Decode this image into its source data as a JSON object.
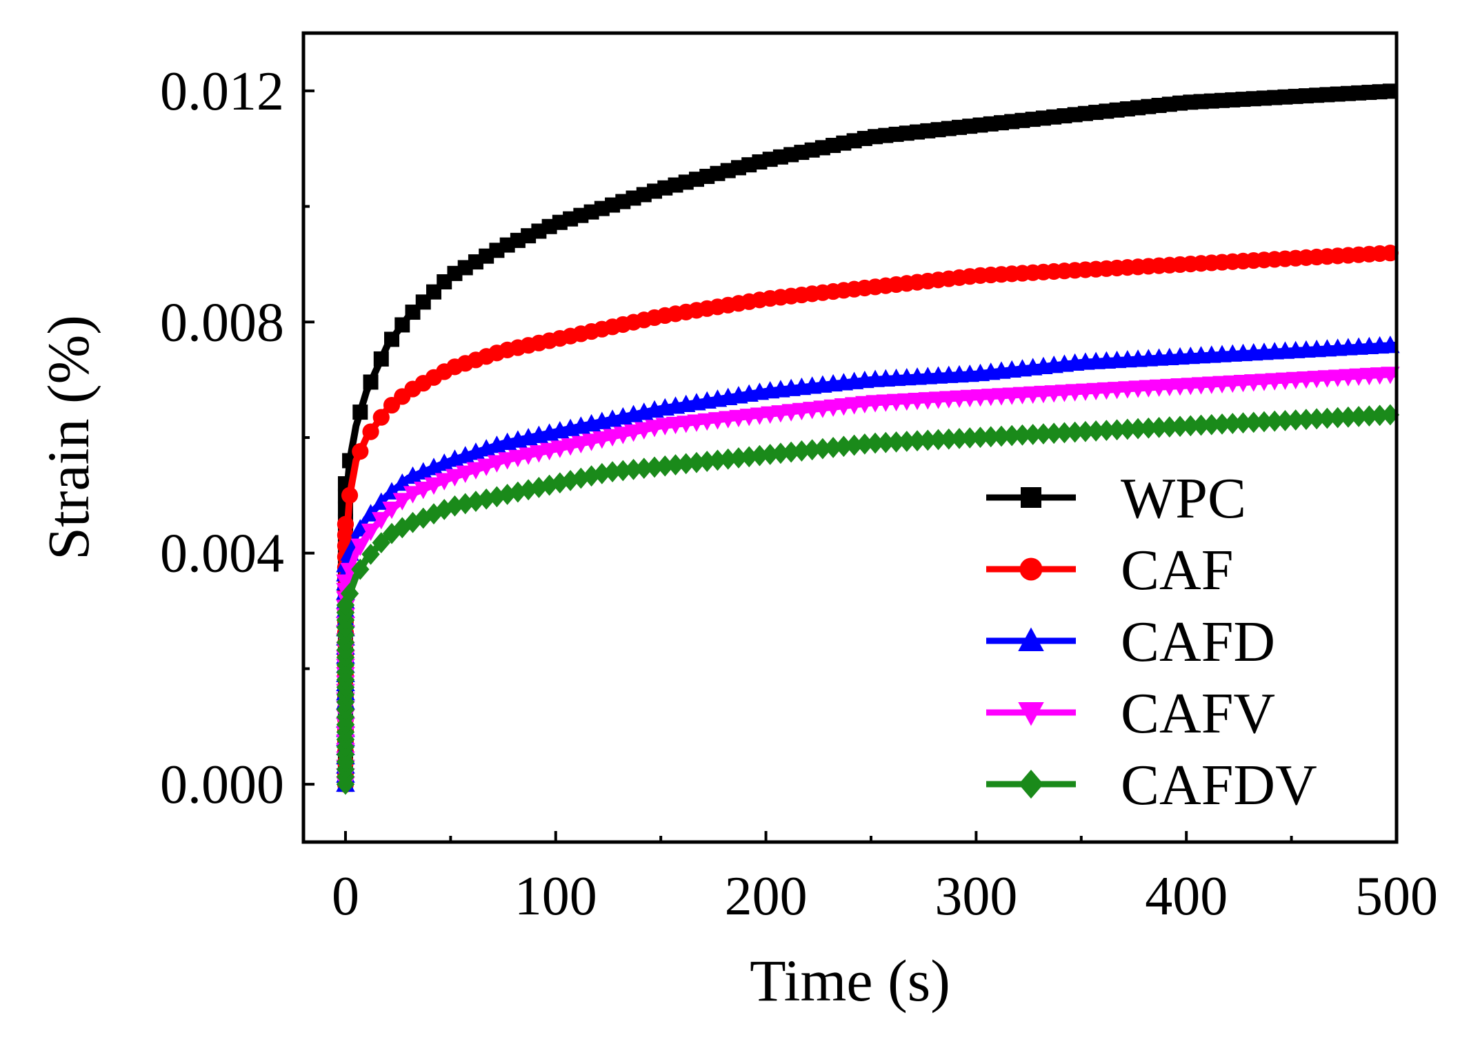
{
  "chart_data": {
    "type": "scatter",
    "title": "",
    "xlabel": "Time (s)",
    "ylabel": "Strain (%)",
    "xlim": [
      -20,
      500
    ],
    "ylim": [
      -0.001,
      0.013
    ],
    "x_ticks": [
      0,
      100,
      200,
      300,
      400,
      500
    ],
    "x_tick_labels": [
      "0",
      "100",
      "200",
      "300",
      "400",
      "500"
    ],
    "y_ticks": [
      0.0,
      0.004,
      0.008,
      0.012
    ],
    "y_tick_labels": [
      "0.000",
      "0.004",
      "0.008",
      "0.012"
    ],
    "grid": false,
    "legend_position": "bottom-right",
    "x": [
      0,
      1,
      2,
      5,
      10,
      20,
      30,
      50,
      75,
      100,
      125,
      150,
      200,
      250,
      300,
      350,
      400,
      450,
      500
    ],
    "series": [
      {
        "name": "WPC",
        "color": "#000000",
        "marker": "square",
        "values": [
          0.0,
          0.0052,
          0.0056,
          0.0062,
          0.0068,
          0.0076,
          0.0081,
          0.0088,
          0.0093,
          0.0097,
          0.01,
          0.0103,
          0.0108,
          0.0112,
          0.0114,
          0.0116,
          0.0118,
          0.0119,
          0.012
        ]
      },
      {
        "name": "CAF",
        "color": "#ff0000",
        "marker": "circle",
        "values": [
          0.0,
          0.0045,
          0.005,
          0.0056,
          0.006,
          0.0065,
          0.0068,
          0.0072,
          0.0075,
          0.0077,
          0.0079,
          0.0081,
          0.0084,
          0.0086,
          0.0088,
          0.0089,
          0.009,
          0.0091,
          0.0092
        ]
      },
      {
        "name": "CAFD",
        "color": "#0000ff",
        "marker": "triangle-up",
        "values": [
          0.0,
          0.0038,
          0.004,
          0.0043,
          0.0046,
          0.005,
          0.0053,
          0.0056,
          0.0059,
          0.0061,
          0.0063,
          0.0065,
          0.0068,
          0.007,
          0.0071,
          0.0073,
          0.0074,
          0.0075,
          0.0076
        ]
      },
      {
        "name": "CAFV",
        "color": "#ff00ff",
        "marker": "triangle-down",
        "values": [
          0.0,
          0.0035,
          0.0037,
          0.004,
          0.0043,
          0.0047,
          0.005,
          0.0053,
          0.0056,
          0.0058,
          0.006,
          0.0062,
          0.0064,
          0.0066,
          0.0067,
          0.0068,
          0.0069,
          0.007,
          0.0071
        ]
      },
      {
        "name": "CAFDV",
        "color": "#1a8a1a",
        "marker": "diamond",
        "values": [
          0.0,
          0.0031,
          0.0033,
          0.0036,
          0.0039,
          0.0043,
          0.0045,
          0.0048,
          0.005,
          0.0052,
          0.0054,
          0.0055,
          0.0057,
          0.0059,
          0.006,
          0.0061,
          0.0062,
          0.0063,
          0.0064
        ]
      }
    ]
  }
}
